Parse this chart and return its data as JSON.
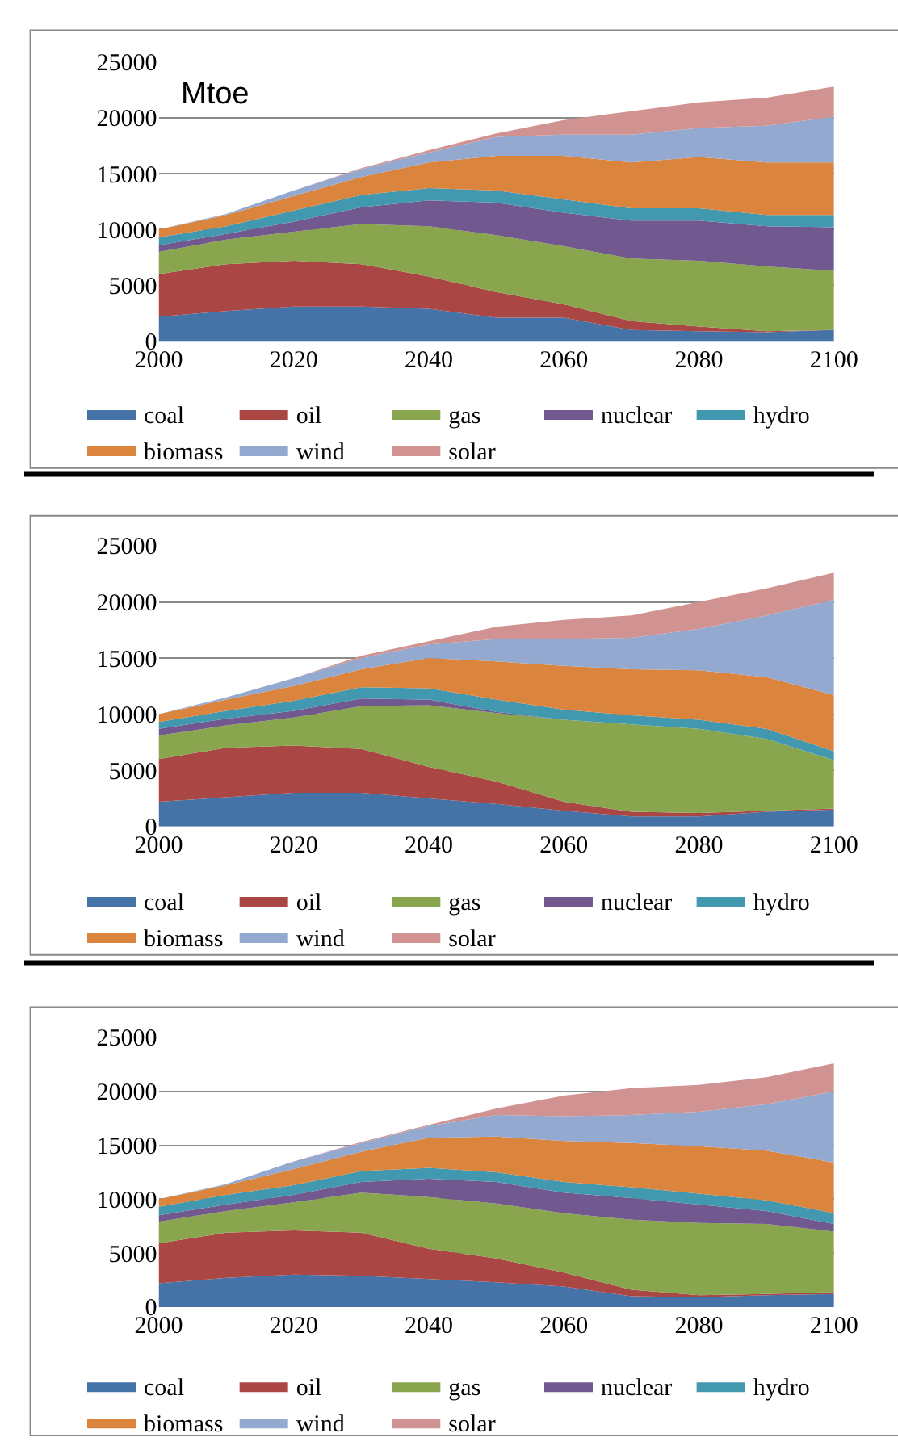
{
  "chart_data": [
    {
      "type": "area",
      "stacked": true,
      "annotations": [
        "Mtoe"
      ],
      "x": [
        2000,
        2010,
        2020,
        2030,
        2040,
        2050,
        2060,
        2070,
        2080,
        2090,
        2100
      ],
      "xlim": [
        2000,
        2100
      ],
      "xticks": [
        2000,
        2020,
        2040,
        2060,
        2080,
        2100
      ],
      "ylim": [
        0,
        25000
      ],
      "yticks": [
        0,
        5000,
        10000,
        15000,
        20000,
        25000
      ],
      "grid": "y",
      "legend": "bottom",
      "series": [
        {
          "name": "coal",
          "color": "#4572a7",
          "values": [
            2200,
            2700,
            3100,
            3100,
            2900,
            2100,
            2100,
            1000,
            900,
            800,
            1000
          ]
        },
        {
          "name": "oil",
          "color": "#aa4643",
          "values": [
            3800,
            4200,
            4100,
            3800,
            2900,
            2300,
            1200,
            800,
            400,
            100,
            0
          ]
        },
        {
          "name": "gas",
          "color": "#89a54e",
          "values": [
            2000,
            2200,
            2600,
            3600,
            4500,
            5100,
            5200,
            5600,
            5900,
            5800,
            5300
          ]
        },
        {
          "name": "nuclear",
          "color": "#71588f",
          "values": [
            600,
            500,
            900,
            1500,
            2300,
            2900,
            3000,
            3400,
            3600,
            3600,
            3900
          ]
        },
        {
          "name": "hydro",
          "color": "#4198af",
          "values": [
            700,
            700,
            1000,
            1100,
            1100,
            1100,
            1200,
            1100,
            1100,
            1000,
            1100
          ]
        },
        {
          "name": "biomass",
          "color": "#db843d",
          "values": [
            700,
            1000,
            1300,
            1600,
            2300,
            3100,
            3900,
            4100,
            4600,
            4700,
            4700
          ]
        },
        {
          "name": "wind",
          "color": "#93a9cf",
          "values": [
            0,
            100,
            500,
            700,
            900,
            1700,
            1900,
            2500,
            2600,
            3300,
            4100
          ]
        },
        {
          "name": "solar",
          "color": "#d19392",
          "values": [
            0,
            0,
            0,
            100,
            200,
            300,
            1300,
            2100,
            2300,
            2500,
            2700
          ]
        }
      ]
    },
    {
      "type": "area",
      "stacked": true,
      "x": [
        2000,
        2010,
        2020,
        2030,
        2040,
        2050,
        2060,
        2070,
        2080,
        2090,
        2100
      ],
      "xlim": [
        2000,
        2100
      ],
      "xticks": [
        2000,
        2020,
        2040,
        2060,
        2080,
        2100
      ],
      "ylim": [
        0,
        25000
      ],
      "yticks": [
        0,
        5000,
        10000,
        15000,
        20000,
        25000
      ],
      "grid": "y",
      "legend": "bottom",
      "series": [
        {
          "name": "coal",
          "color": "#4572a7",
          "values": [
            2200,
            2600,
            3000,
            3000,
            2500,
            2000,
            1400,
            900,
            900,
            1300,
            1500
          ]
        },
        {
          "name": "oil",
          "color": "#aa4643",
          "values": [
            3800,
            4400,
            4200,
            3900,
            2800,
            2000,
            800,
            400,
            300,
            100,
            100
          ]
        },
        {
          "name": "gas",
          "color": "#89a54e",
          "values": [
            2100,
            2000,
            2500,
            3800,
            5500,
            6100,
            7300,
            7800,
            7500,
            6400,
            4300
          ]
        },
        {
          "name": "nuclear",
          "color": "#71588f",
          "values": [
            600,
            600,
            600,
            700,
            500,
            100,
            0,
            0,
            0,
            0,
            0
          ]
        },
        {
          "name": "hydro",
          "color": "#4198af",
          "values": [
            600,
            700,
            900,
            1000,
            1000,
            1100,
            900,
            800,
            800,
            900,
            800
          ]
        },
        {
          "name": "biomass",
          "color": "#db843d",
          "values": [
            700,
            1000,
            1300,
            1600,
            2700,
            3400,
            3900,
            4100,
            4400,
            4600,
            5000
          ]
        },
        {
          "name": "wind",
          "color": "#93a9cf",
          "values": [
            0,
            200,
            700,
            1000,
            1200,
            2000,
            2400,
            2800,
            3700,
            5500,
            8500
          ]
        },
        {
          "name": "solar",
          "color": "#d19392",
          "values": [
            0,
            0,
            0,
            200,
            300,
            1100,
            1700,
            2000,
            2400,
            2400,
            2400
          ]
        }
      ]
    },
    {
      "type": "area",
      "stacked": true,
      "x": [
        2000,
        2010,
        2020,
        2030,
        2040,
        2050,
        2060,
        2070,
        2080,
        2090,
        2100
      ],
      "xlim": [
        2000,
        2100
      ],
      "xticks": [
        2000,
        2020,
        2040,
        2060,
        2080,
        2100
      ],
      "ylim": [
        0,
        25000
      ],
      "yticks": [
        0,
        5000,
        10000,
        15000,
        20000,
        25000
      ],
      "grid": "y",
      "legend": "bottom",
      "series": [
        {
          "name": "coal",
          "color": "#4572a7",
          "values": [
            2200,
            2700,
            3000,
            2900,
            2600,
            2300,
            1900,
            1000,
            900,
            1100,
            1200
          ]
        },
        {
          "name": "oil",
          "color": "#aa4643",
          "values": [
            3700,
            4200,
            4100,
            4000,
            2800,
            2200,
            1300,
            600,
            200,
            100,
            200
          ]
        },
        {
          "name": "gas",
          "color": "#89a54e",
          "values": [
            2000,
            2000,
            2600,
            3700,
            4800,
            5100,
            5500,
            6500,
            6700,
            6500,
            5600
          ]
        },
        {
          "name": "nuclear",
          "color": "#71588f",
          "values": [
            600,
            600,
            700,
            1000,
            1700,
            2000,
            1900,
            2000,
            1700,
            1200,
            700
          ]
        },
        {
          "name": "hydro",
          "color": "#4198af",
          "values": [
            800,
            900,
            900,
            1000,
            1000,
            900,
            1000,
            1000,
            1000,
            1000,
            1000
          ]
        },
        {
          "name": "biomass",
          "color": "#db843d",
          "values": [
            700,
            900,
            1500,
            1800,
            2800,
            3300,
            3800,
            4100,
            4400,
            4600,
            4700
          ]
        },
        {
          "name": "wind",
          "color": "#93a9cf",
          "values": [
            0,
            100,
            700,
            800,
            1100,
            2000,
            2300,
            2600,
            3200,
            4300,
            6600
          ]
        },
        {
          "name": "solar",
          "color": "#d19392",
          "values": [
            0,
            0,
            0,
            100,
            100,
            600,
            1900,
            2500,
            2500,
            2500,
            2600
          ]
        }
      ]
    }
  ]
}
